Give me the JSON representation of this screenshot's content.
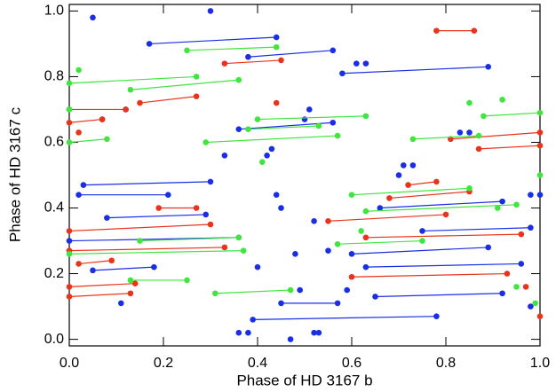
{
  "chart_data": {
    "type": "scatter",
    "x_label": "Phase of HD 3167 b",
    "y_label": "Phase of HD 3167 c",
    "xlim": [
      0,
      1
    ],
    "ylim": [
      -0.02,
      1.02
    ],
    "xticks": [
      {
        "value": 0,
        "label": "0.0"
      },
      {
        "value": 0.2,
        "label": "0.2"
      },
      {
        "value": 0.4,
        "label": "0.4"
      },
      {
        "value": 0.6,
        "label": "0.6"
      },
      {
        "value": 0.8,
        "label": "0.8"
      },
      {
        "value": 1,
        "label": "1.0"
      }
    ],
    "yticks": [
      {
        "value": 0,
        "label": "0.0"
      },
      {
        "value": 0.2,
        "label": "0.2"
      },
      {
        "value": 0.4,
        "label": "0.4"
      },
      {
        "value": 0.6,
        "label": "0.6"
      },
      {
        "value": 0.8,
        "label": "0.8"
      },
      {
        "value": 1,
        "label": "1.0"
      }
    ],
    "series": [
      {
        "color": "#1a2ee6",
        "x": [
          0.17,
          0.44,
          null,
          0.38,
          0.56,
          null,
          0.58,
          0.89,
          null,
          0.36,
          0.56,
          null,
          0.03,
          0.3,
          null,
          0.02,
          0.21,
          null,
          0.08,
          0.29,
          null,
          0.0,
          0.36,
          null,
          0.05,
          0.18,
          null,
          0.63,
          0.96,
          null,
          0.65,
          0.92,
          null,
          0.39,
          0.78,
          null,
          0.45,
          0.57,
          null,
          0.66,
          0.92,
          null,
          0.75,
          0.98,
          null,
          0.6,
          0.89,
          null,
          0.05,
          null,
          0.07,
          null,
          0.12,
          null,
          0.11,
          null,
          0.3,
          null,
          0.36,
          null,
          0.38,
          null,
          0.42,
          null,
          0.43,
          null,
          0.49,
          null,
          0.48,
          null,
          0.4,
          null,
          0.44,
          null,
          0.45,
          null,
          0.5,
          null,
          0.51,
          null,
          0.52,
          null,
          0.55,
          null,
          0.47,
          null,
          0.52,
          null,
          0.53,
          null,
          0.59,
          null,
          0.61,
          null,
          0.63,
          null,
          0.33,
          null,
          0.71,
          null,
          0.73,
          null,
          0.7,
          null,
          0.83,
          null,
          0.85,
          null,
          0.98,
          null,
          1.0,
          null,
          0.98
        ],
        "y": [
          0.9,
          0.92,
          null,
          0.86,
          0.88,
          null,
          0.81,
          0.83,
          null,
          0.64,
          0.66,
          null,
          0.47,
          0.48,
          null,
          0.44,
          0.44,
          null,
          0.37,
          0.38,
          null,
          0.3,
          0.31,
          null,
          0.21,
          0.22,
          null,
          0.22,
          0.23,
          null,
          0.13,
          0.14,
          null,
          0.06,
          0.07,
          null,
          0.11,
          0.11,
          null,
          0.4,
          0.42,
          null,
          0.33,
          0.34,
          null,
          0.26,
          0.28,
          null,
          0.98,
          null,
          0.67,
          null,
          0.7,
          null,
          0.11,
          null,
          1.0,
          null,
          0.02,
          null,
          0.02,
          null,
          0.56,
          null,
          0.58,
          null,
          0.15,
          null,
          0.26,
          null,
          0.22,
          null,
          0.44,
          null,
          0.4,
          null,
          0.67,
          null,
          0.7,
          null,
          0.36,
          null,
          0.27,
          null,
          0.0,
          null,
          0.02,
          null,
          0.02,
          null,
          0.15,
          null,
          0.84,
          null,
          0.84,
          null,
          0.56,
          null,
          0.53,
          null,
          0.53,
          null,
          0.5,
          null,
          0.63,
          null,
          0.63,
          null,
          0.44,
          null,
          0.44,
          null,
          0.1
        ]
      },
      {
        "color": "#e8341c",
        "x": [
          0.78,
          0.86,
          null,
          0.33,
          0.45,
          null,
          0.15,
          0.27,
          null,
          0.0,
          0.12,
          null,
          0.0,
          0.07,
          null,
          0.81,
          1.0,
          null,
          0.87,
          1.0,
          null,
          0.0,
          0.3,
          null,
          0.0,
          0.33,
          null,
          0.02,
          0.09,
          null,
          0.0,
          0.14,
          null,
          0.0,
          0.13,
          null,
          0.55,
          0.8,
          null,
          0.6,
          0.93,
          null,
          0.63,
          0.96,
          null,
          0.72,
          0.78,
          null,
          0.68,
          0.85,
          null,
          0.19,
          0.27,
          null,
          0.02,
          null,
          1.0,
          null,
          0.97,
          null,
          0.44
        ],
        "y": [
          0.94,
          0.94,
          null,
          0.84,
          0.85,
          null,
          0.72,
          0.74,
          null,
          0.7,
          0.7,
          null,
          0.66,
          0.67,
          null,
          0.61,
          0.63,
          null,
          0.58,
          0.59,
          null,
          0.33,
          0.35,
          null,
          0.27,
          0.28,
          null,
          0.23,
          0.24,
          null,
          0.16,
          0.17,
          null,
          0.13,
          0.14,
          null,
          0.36,
          0.38,
          null,
          0.19,
          0.2,
          null,
          0.31,
          0.32,
          null,
          0.47,
          0.48,
          null,
          0.43,
          0.45,
          null,
          0.4,
          0.4,
          null,
          0.63,
          null,
          0.07,
          null,
          0.16,
          null,
          0.72
        ]
      },
      {
        "color": "#3ee63e",
        "x": [
          0.25,
          0.44,
          null,
          0.0,
          0.27,
          null,
          0.13,
          0.36,
          null,
          0.4,
          0.63,
          null,
          0.29,
          0.57,
          null,
          0.38,
          0.53,
          null,
          0.73,
          0.87,
          null,
          0.88,
          1.0,
          null,
          0.6,
          0.85,
          null,
          0.63,
          0.95,
          null,
          0.15,
          0.36,
          null,
          0.0,
          0.37,
          null,
          0.13,
          0.25,
          null,
          0.31,
          0.47,
          null,
          0.0,
          0.08,
          null,
          0.57,
          0.75,
          null,
          0.02,
          null,
          0.0,
          null,
          0.41,
          null,
          0.85,
          null,
          0.92,
          null,
          0.91,
          null,
          1.0,
          null,
          0.62,
          null,
          0.95,
          null,
          0.99
        ],
        "y": [
          0.88,
          0.89,
          null,
          0.78,
          0.8,
          null,
          0.76,
          0.79,
          null,
          0.67,
          0.68,
          null,
          0.6,
          0.62,
          null,
          0.64,
          0.65,
          null,
          0.61,
          0.62,
          null,
          0.68,
          0.69,
          null,
          0.44,
          0.46,
          null,
          0.39,
          0.41,
          null,
          0.3,
          0.31,
          null,
          0.26,
          0.27,
          null,
          0.18,
          0.18,
          null,
          0.14,
          0.15,
          null,
          0.6,
          0.61,
          null,
          0.29,
          0.3,
          null,
          0.82,
          null,
          0.7,
          null,
          0.54,
          null,
          0.72,
          null,
          0.73,
          null,
          0.4,
          null,
          0.5,
          null,
          0.33,
          null,
          0.16,
          null,
          0.11
        ]
      }
    ]
  }
}
